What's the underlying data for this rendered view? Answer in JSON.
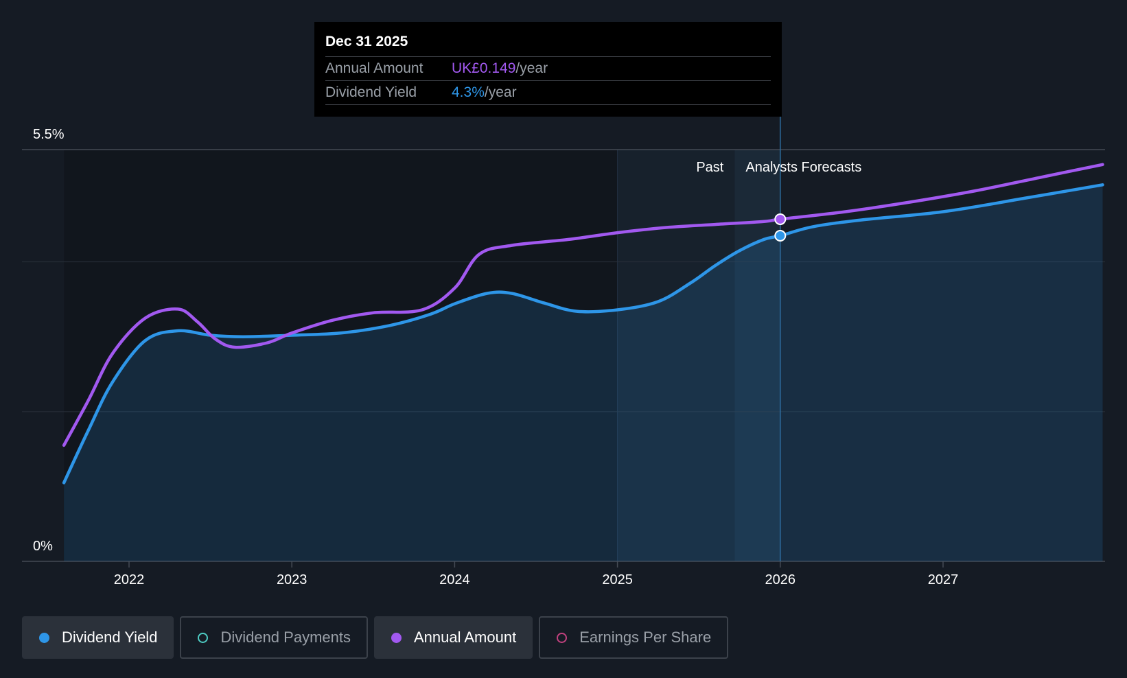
{
  "tooltip": {
    "date": "Dec 31 2025",
    "rows": [
      {
        "label": "Annual Amount",
        "value": "UK£0.149",
        "unit": "/year",
        "color": "#a259f0"
      },
      {
        "label": "Dividend Yield",
        "value": "4.3%",
        "unit": "/year",
        "color": "#2e96e8"
      }
    ]
  },
  "regions": {
    "past_label": "Past",
    "forecast_label": "Analysts Forecasts"
  },
  "legend": [
    {
      "label": "Dividend Yield",
      "color": "#2e96e8",
      "active": true,
      "filled": true,
      "icon": "dividend-yield-dot-icon"
    },
    {
      "label": "Dividend Payments",
      "color": "#4ecdc4",
      "active": false,
      "filled": false,
      "icon": "dividend-payments-dot-icon"
    },
    {
      "label": "Annual Amount",
      "color": "#a259f0",
      "active": true,
      "filled": true,
      "icon": "annual-amount-dot-icon"
    },
    {
      "label": "Earnings Per Share",
      "color": "#c2417f",
      "active": false,
      "filled": false,
      "icon": "earnings-per-share-dot-icon"
    }
  ],
  "chart_data": {
    "type": "line",
    "title": "",
    "xlabel": "",
    "ylabel": "",
    "x_ticks": [
      "2022",
      "2023",
      "2024",
      "2025",
      "2026",
      "2027"
    ],
    "y_ticks": [
      "0%",
      "5.5%"
    ],
    "ylim": [
      0,
      5.5
    ],
    "xlim": [
      2021.34,
      2027.98
    ],
    "past_shade_start": 2025.0,
    "past_end": 2025.72,
    "marker_x": 2026.0,
    "grid": true,
    "series": [
      {
        "name": "Dividend Yield",
        "color": "#2e96e8",
        "area": true,
        "x": [
          2021.6,
          2021.75,
          2021.9,
          2022.1,
          2022.3,
          2022.5,
          2022.7,
          2023.0,
          2023.3,
          2023.6,
          2023.85,
          2024.0,
          2024.2,
          2024.35,
          2024.55,
          2024.75,
          2025.0,
          2025.25,
          2025.45,
          2025.6,
          2025.75,
          2025.9,
          2026.0,
          2026.2,
          2026.5,
          2027.0,
          2027.5,
          2027.98
        ],
        "values": [
          1.05,
          1.75,
          2.4,
          2.95,
          3.08,
          3.02,
          3.0,
          3.02,
          3.05,
          3.15,
          3.3,
          3.44,
          3.58,
          3.58,
          3.45,
          3.34,
          3.36,
          3.47,
          3.72,
          3.95,
          4.15,
          4.3,
          4.35,
          4.47,
          4.56,
          4.67,
          4.85,
          5.03
        ]
      },
      {
        "name": "Annual Amount",
        "color": "#a259f0",
        "area": false,
        "x": [
          2021.6,
          2021.75,
          2021.9,
          2022.1,
          2022.3,
          2022.42,
          2022.53,
          2022.65,
          2022.85,
          2023.0,
          2023.25,
          2023.5,
          2023.8,
          2024.0,
          2024.15,
          2024.35,
          2024.7,
          2025.0,
          2025.3,
          2025.6,
          2025.9,
          2026.0,
          2026.4,
          2026.8,
          2027.2,
          2027.6,
          2027.98
        ],
        "values": [
          1.55,
          2.15,
          2.78,
          3.25,
          3.37,
          3.2,
          2.97,
          2.86,
          2.92,
          3.05,
          3.22,
          3.32,
          3.36,
          3.65,
          4.1,
          4.22,
          4.3,
          4.39,
          4.46,
          4.5,
          4.54,
          4.57,
          4.67,
          4.8,
          4.95,
          5.13,
          5.3
        ]
      }
    ],
    "highlight_points": [
      {
        "series": "Annual Amount",
        "x": 2026.0,
        "y": 4.57
      },
      {
        "series": "Dividend Yield",
        "x": 2026.0,
        "y": 4.35
      }
    ]
  }
}
